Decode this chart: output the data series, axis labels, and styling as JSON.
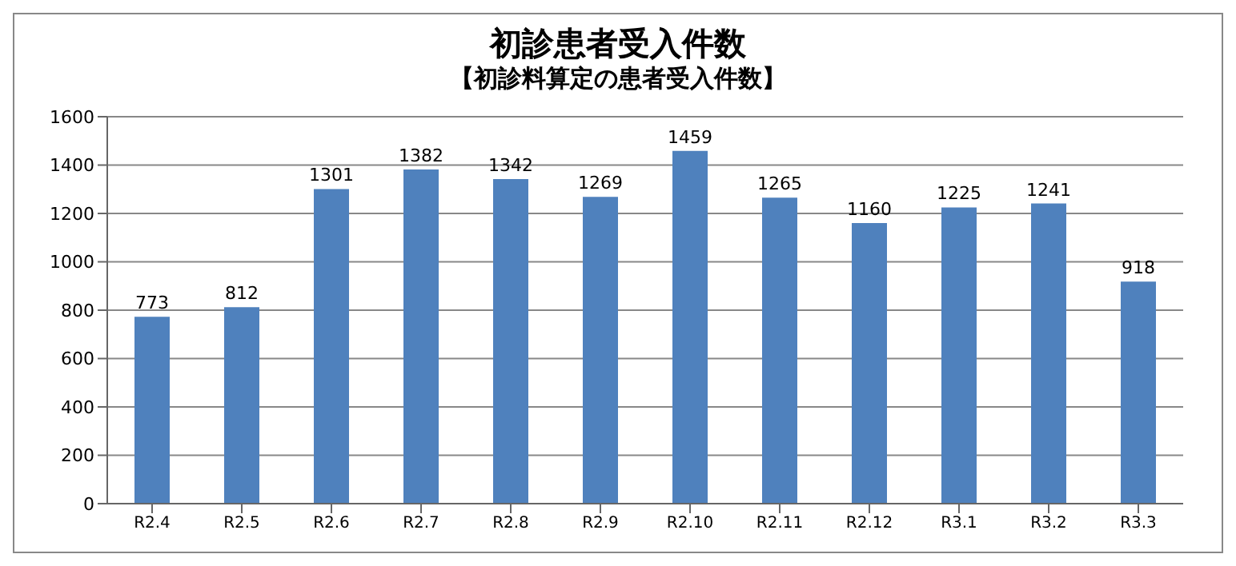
{
  "chart_data": {
    "type": "bar",
    "title": "初診患者受入件数",
    "subtitle": "【初診料算定の患者受入件数】",
    "categories": [
      "R2.4",
      "R2.5",
      "R2.6",
      "R2.7",
      "R2.8",
      "R2.9",
      "R2.10",
      "R2.11",
      "R2.12",
      "R3.1",
      "R3.2",
      "R3.3"
    ],
    "values": [
      773,
      812,
      1301,
      1382,
      1342,
      1269,
      1459,
      1265,
      1160,
      1225,
      1241,
      918
    ],
    "color": "#4f81bd",
    "ylim": [
      0,
      1600
    ],
    "yticks": [
      0,
      200,
      400,
      600,
      800,
      1000,
      1200,
      1400,
      1600
    ],
    "grid": "y",
    "data_labels": true
  }
}
